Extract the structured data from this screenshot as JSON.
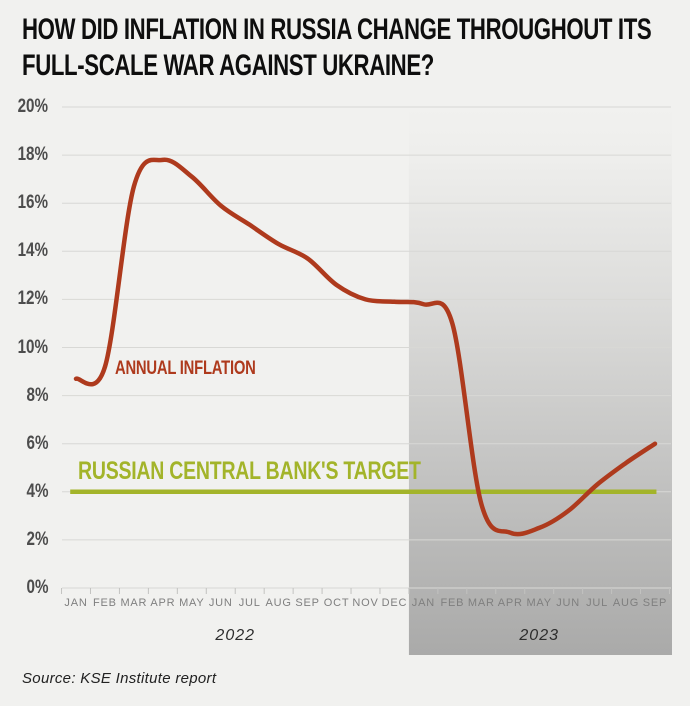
{
  "title": {
    "line1": "HOW DID INFLATION IN RUSSIA CHANGE THROUGHOUT ITS",
    "line2": "FULL-SCALE WAR AGAINST UKRAINE?"
  },
  "source": "Source: KSE Institute report",
  "colors": {
    "background": "#f1f1ef",
    "inflation_line": "#ae3a1d",
    "target_line": "#a3b42a",
    "gridline": "#d8d8d5",
    "tick": "#c2c2c0",
    "y_label": "#4d4d4d",
    "x_label": "#7f7f7f",
    "highlight_gray": "#808080"
  },
  "chart_data": {
    "type": "line",
    "title": "How did inflation in Russia change throughout its full-scale war against Ukraine?",
    "x": [
      "JAN",
      "FEB",
      "MAR",
      "APR",
      "MAY",
      "JUN",
      "JUL",
      "AUG",
      "SEP",
      "OCT",
      "NOV",
      "DEC",
      "JAN",
      "FEB",
      "MAR",
      "APR",
      "MAY",
      "JUN",
      "JUL",
      "AUG",
      "SEP"
    ],
    "x_groups": [
      {
        "label": "2022",
        "start_index": 0,
        "months": 12
      },
      {
        "label": "2023",
        "start_index": 12,
        "months": 9
      }
    ],
    "series": [
      {
        "name": "ANNUAL INFLATION",
        "color": "#ae3a1d",
        "values": [
          8.7,
          9.2,
          16.7,
          17.8,
          17.1,
          15.9,
          15.1,
          14.3,
          13.7,
          12.6,
          12.0,
          11.9,
          11.8,
          11.0,
          3.5,
          2.3,
          2.5,
          3.2,
          4.3,
          5.2,
          6.0
        ]
      },
      {
        "name": "RUSSIAN CENTRAL BANK'S TARGET",
        "color": "#a3b42a",
        "constant_value": 4.0
      }
    ],
    "ylim": [
      0,
      20
    ],
    "ytick_step": 2,
    "ytick_suffix": "%",
    "grid": true,
    "legend_position": "inline-annotations",
    "highlight_region": {
      "label": "2023",
      "start_index": 12,
      "end_index": 20
    }
  }
}
